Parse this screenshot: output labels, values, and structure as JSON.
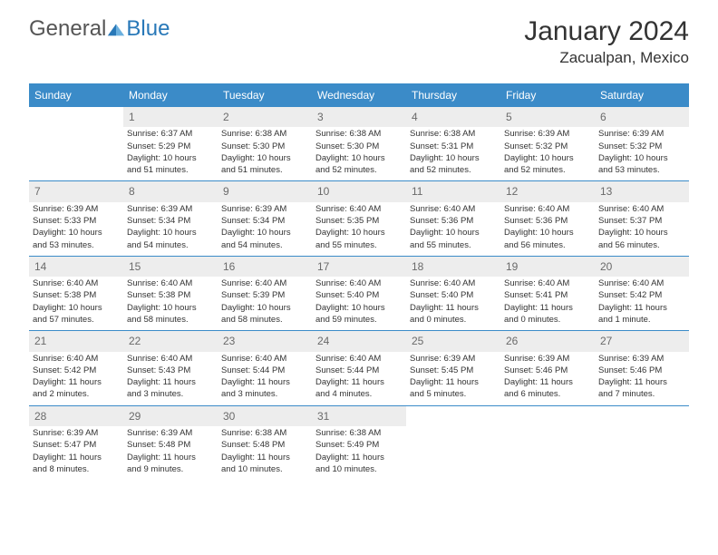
{
  "logo": {
    "part1": "General",
    "part2": "Blue"
  },
  "title": "January 2024",
  "location": "Zacualpan, Mexico",
  "colors": {
    "header_bg": "#3b8bc8",
    "header_text": "#ffffff",
    "daynum_bg": "#ededed",
    "daynum_text": "#6a6a6a",
    "body_text": "#333333",
    "rule": "#3b8bc8",
    "logo_gray": "#555555",
    "logo_blue": "#2878b8"
  },
  "fonts": {
    "month_title_pt": 30,
    "location_pt": 17,
    "day_header_pt": 12,
    "daynum_pt": 12,
    "body_pt": 9.5
  },
  "day_headers": [
    "Sunday",
    "Monday",
    "Tuesday",
    "Wednesday",
    "Thursday",
    "Friday",
    "Saturday"
  ],
  "weeks": [
    [
      {
        "empty": true
      },
      {
        "n": "1",
        "sunrise": "Sunrise: 6:37 AM",
        "sunset": "Sunset: 5:29 PM",
        "day1": "Daylight: 10 hours",
        "day2": "and 51 minutes."
      },
      {
        "n": "2",
        "sunrise": "Sunrise: 6:38 AM",
        "sunset": "Sunset: 5:30 PM",
        "day1": "Daylight: 10 hours",
        "day2": "and 51 minutes."
      },
      {
        "n": "3",
        "sunrise": "Sunrise: 6:38 AM",
        "sunset": "Sunset: 5:30 PM",
        "day1": "Daylight: 10 hours",
        "day2": "and 52 minutes."
      },
      {
        "n": "4",
        "sunrise": "Sunrise: 6:38 AM",
        "sunset": "Sunset: 5:31 PM",
        "day1": "Daylight: 10 hours",
        "day2": "and 52 minutes."
      },
      {
        "n": "5",
        "sunrise": "Sunrise: 6:39 AM",
        "sunset": "Sunset: 5:32 PM",
        "day1": "Daylight: 10 hours",
        "day2": "and 52 minutes."
      },
      {
        "n": "6",
        "sunrise": "Sunrise: 6:39 AM",
        "sunset": "Sunset: 5:32 PM",
        "day1": "Daylight: 10 hours",
        "day2": "and 53 minutes."
      }
    ],
    [
      {
        "n": "7",
        "sunrise": "Sunrise: 6:39 AM",
        "sunset": "Sunset: 5:33 PM",
        "day1": "Daylight: 10 hours",
        "day2": "and 53 minutes."
      },
      {
        "n": "8",
        "sunrise": "Sunrise: 6:39 AM",
        "sunset": "Sunset: 5:34 PM",
        "day1": "Daylight: 10 hours",
        "day2": "and 54 minutes."
      },
      {
        "n": "9",
        "sunrise": "Sunrise: 6:39 AM",
        "sunset": "Sunset: 5:34 PM",
        "day1": "Daylight: 10 hours",
        "day2": "and 54 minutes."
      },
      {
        "n": "10",
        "sunrise": "Sunrise: 6:40 AM",
        "sunset": "Sunset: 5:35 PM",
        "day1": "Daylight: 10 hours",
        "day2": "and 55 minutes."
      },
      {
        "n": "11",
        "sunrise": "Sunrise: 6:40 AM",
        "sunset": "Sunset: 5:36 PM",
        "day1": "Daylight: 10 hours",
        "day2": "and 55 minutes."
      },
      {
        "n": "12",
        "sunrise": "Sunrise: 6:40 AM",
        "sunset": "Sunset: 5:36 PM",
        "day1": "Daylight: 10 hours",
        "day2": "and 56 minutes."
      },
      {
        "n": "13",
        "sunrise": "Sunrise: 6:40 AM",
        "sunset": "Sunset: 5:37 PM",
        "day1": "Daylight: 10 hours",
        "day2": "and 56 minutes."
      }
    ],
    [
      {
        "n": "14",
        "sunrise": "Sunrise: 6:40 AM",
        "sunset": "Sunset: 5:38 PM",
        "day1": "Daylight: 10 hours",
        "day2": "and 57 minutes."
      },
      {
        "n": "15",
        "sunrise": "Sunrise: 6:40 AM",
        "sunset": "Sunset: 5:38 PM",
        "day1": "Daylight: 10 hours",
        "day2": "and 58 minutes."
      },
      {
        "n": "16",
        "sunrise": "Sunrise: 6:40 AM",
        "sunset": "Sunset: 5:39 PM",
        "day1": "Daylight: 10 hours",
        "day2": "and 58 minutes."
      },
      {
        "n": "17",
        "sunrise": "Sunrise: 6:40 AM",
        "sunset": "Sunset: 5:40 PM",
        "day1": "Daylight: 10 hours",
        "day2": "and 59 minutes."
      },
      {
        "n": "18",
        "sunrise": "Sunrise: 6:40 AM",
        "sunset": "Sunset: 5:40 PM",
        "day1": "Daylight: 11 hours",
        "day2": "and 0 minutes."
      },
      {
        "n": "19",
        "sunrise": "Sunrise: 6:40 AM",
        "sunset": "Sunset: 5:41 PM",
        "day1": "Daylight: 11 hours",
        "day2": "and 0 minutes."
      },
      {
        "n": "20",
        "sunrise": "Sunrise: 6:40 AM",
        "sunset": "Sunset: 5:42 PM",
        "day1": "Daylight: 11 hours",
        "day2": "and 1 minute."
      }
    ],
    [
      {
        "n": "21",
        "sunrise": "Sunrise: 6:40 AM",
        "sunset": "Sunset: 5:42 PM",
        "day1": "Daylight: 11 hours",
        "day2": "and 2 minutes."
      },
      {
        "n": "22",
        "sunrise": "Sunrise: 6:40 AM",
        "sunset": "Sunset: 5:43 PM",
        "day1": "Daylight: 11 hours",
        "day2": "and 3 minutes."
      },
      {
        "n": "23",
        "sunrise": "Sunrise: 6:40 AM",
        "sunset": "Sunset: 5:44 PM",
        "day1": "Daylight: 11 hours",
        "day2": "and 3 minutes."
      },
      {
        "n": "24",
        "sunrise": "Sunrise: 6:40 AM",
        "sunset": "Sunset: 5:44 PM",
        "day1": "Daylight: 11 hours",
        "day2": "and 4 minutes."
      },
      {
        "n": "25",
        "sunrise": "Sunrise: 6:39 AM",
        "sunset": "Sunset: 5:45 PM",
        "day1": "Daylight: 11 hours",
        "day2": "and 5 minutes."
      },
      {
        "n": "26",
        "sunrise": "Sunrise: 6:39 AM",
        "sunset": "Sunset: 5:46 PM",
        "day1": "Daylight: 11 hours",
        "day2": "and 6 minutes."
      },
      {
        "n": "27",
        "sunrise": "Sunrise: 6:39 AM",
        "sunset": "Sunset: 5:46 PM",
        "day1": "Daylight: 11 hours",
        "day2": "and 7 minutes."
      }
    ],
    [
      {
        "n": "28",
        "sunrise": "Sunrise: 6:39 AM",
        "sunset": "Sunset: 5:47 PM",
        "day1": "Daylight: 11 hours",
        "day2": "and 8 minutes."
      },
      {
        "n": "29",
        "sunrise": "Sunrise: 6:39 AM",
        "sunset": "Sunset: 5:48 PM",
        "day1": "Daylight: 11 hours",
        "day2": "and 9 minutes."
      },
      {
        "n": "30",
        "sunrise": "Sunrise: 6:38 AM",
        "sunset": "Sunset: 5:48 PM",
        "day1": "Daylight: 11 hours",
        "day2": "and 10 minutes."
      },
      {
        "n": "31",
        "sunrise": "Sunrise: 6:38 AM",
        "sunset": "Sunset: 5:49 PM",
        "day1": "Daylight: 11 hours",
        "day2": "and 10 minutes."
      },
      {
        "empty": true
      },
      {
        "empty": true
      },
      {
        "empty": true
      }
    ]
  ]
}
